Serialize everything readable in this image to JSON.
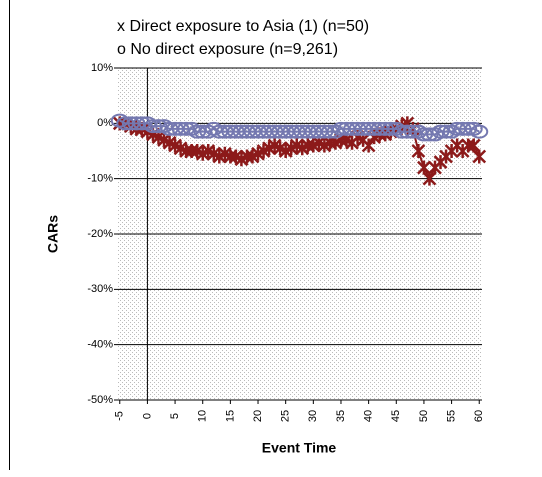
{
  "chart_data": {
    "type": "line",
    "x_label": "Event Time",
    "y_label": "CARs",
    "x": [
      -5,
      -4,
      -3,
      -2,
      -1,
      0,
      1,
      2,
      3,
      4,
      5,
      6,
      7,
      8,
      9,
      10,
      11,
      12,
      13,
      14,
      15,
      16,
      17,
      18,
      19,
      20,
      21,
      22,
      23,
      24,
      25,
      26,
      27,
      28,
      29,
      30,
      31,
      32,
      33,
      34,
      35,
      36,
      37,
      38,
      39,
      40,
      41,
      42,
      43,
      44,
      45,
      46,
      47,
      48,
      49,
      50,
      51,
      52,
      53,
      54,
      55,
      56,
      57,
      58,
      59,
      60
    ],
    "series": [
      {
        "name": "x Direct exposure to Asia (1) (n=50)",
        "color": "#8c1a1a",
        "marker": "x",
        "values": [
          0,
          0,
          -0.5,
          -1,
          -1,
          -1.5,
          -2,
          -2.5,
          -3,
          -3.5,
          -4,
          -4.5,
          -5,
          -5,
          -5,
          -5.5,
          -5,
          -5.5,
          -6,
          -5.5,
          -6,
          -6,
          -6.5,
          -6,
          -6,
          -5.5,
          -5,
          -4.5,
          -4,
          -4.5,
          -5,
          -4.5,
          -4,
          -4.5,
          -4,
          -4,
          -3.5,
          -4,
          -3.5,
          -3.5,
          -3,
          -3,
          -3.5,
          -2.5,
          -3,
          -4,
          -2.5,
          -2,
          -2,
          -1.5,
          -1,
          -0.5,
          0,
          -1,
          -5,
          -8,
          -10,
          -8,
          -7,
          -6,
          -5,
          -4,
          -5,
          -4,
          -4,
          -6
        ]
      },
      {
        "name": "o No direct exposure (n=9,261)",
        "color": "#7478b0",
        "marker": "o",
        "values": [
          0.5,
          0,
          0,
          0,
          0,
          0,
          -0.5,
          -0.5,
          -0.5,
          -1,
          -1,
          -1,
          -1,
          -1,
          -1.5,
          -1.5,
          -1.5,
          -1,
          -1.5,
          -1.5,
          -1.5,
          -1.5,
          -1.5,
          -1.5,
          -1.5,
          -1.5,
          -1.5,
          -1.5,
          -1.5,
          -1.5,
          -1.5,
          -1.5,
          -1.5,
          -1.5,
          -1.5,
          -1.5,
          -1.5,
          -1.5,
          -1.5,
          -1.5,
          -1,
          -1,
          -1,
          -1,
          -1,
          -1,
          -1,
          -1,
          -1,
          -1,
          -1,
          -1.5,
          -1.5,
          -1.5,
          -1.5,
          -2,
          -2,
          -2,
          -1.5,
          -1.5,
          -1.5,
          -1,
          -1,
          -1,
          -1,
          -1.5
        ]
      }
    ],
    "xlim": [
      -5.5,
      60.5
    ],
    "xticks": [
      -5,
      0,
      5,
      10,
      15,
      20,
      25,
      30,
      35,
      40,
      45,
      50,
      55,
      60
    ],
    "ylim": [
      -50,
      10
    ],
    "yticks": [
      {
        "value": -50,
        "label": "-50%"
      },
      {
        "value": -40,
        "label": "-40%"
      },
      {
        "value": -30,
        "label": "-30%"
      },
      {
        "value": -20,
        "label": "-20%"
      },
      {
        "value": -10,
        "label": "-10%"
      },
      {
        "value": 0,
        "label": "0%"
      },
      {
        "value": 10,
        "label": "10%"
      }
    ],
    "grid": true
  }
}
